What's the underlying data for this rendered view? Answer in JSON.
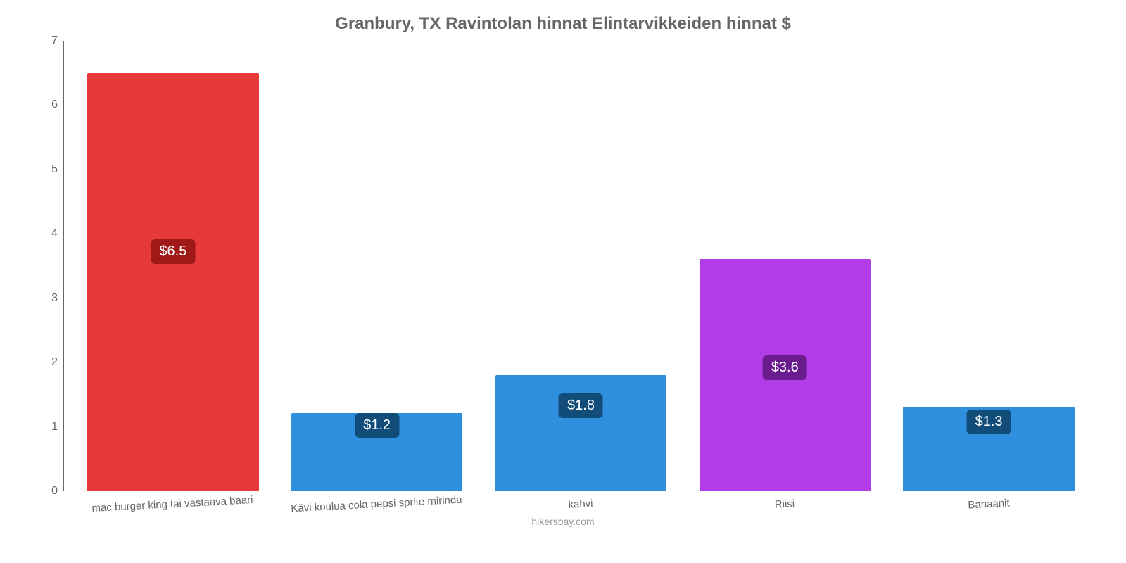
{
  "chart": {
    "type": "bar",
    "title": "Granbury, TX Ravintolan hinnat Elintarvikkeiden hinnat $",
    "title_fontsize": 24,
    "title_color": "#666666",
    "background_color": "#ffffff",
    "axis_color": "#666666",
    "tick_fontsize": 16,
    "tick_color": "#666666",
    "xlabel_fontsize": 15,
    "xlabel_rotate_deg": -3,
    "ylim": [
      0,
      7
    ],
    "yticks": [
      0,
      1,
      2,
      3,
      4,
      5,
      6,
      7
    ],
    "bar_width_pct": 84,
    "credit": "hikersbay.com",
    "credit_color": "#999999",
    "credit_fontsize": 14,
    "value_badge": {
      "fontsize": 20,
      "text_color": "#ffffff",
      "radius": 6,
      "padding": "6px 12px"
    },
    "bars": [
      {
        "category": "mac burger king tai vastaava baari",
        "value": 6.5,
        "display": "$6.5",
        "bar_color": "#e63939",
        "badge_bg": "#a01919",
        "badge_y_value": 3.7
      },
      {
        "category": "Kävi koulua cola pepsi sprite mirinda",
        "value": 1.2,
        "display": "$1.2",
        "bar_color": "#2d8fdd",
        "badge_bg": "#124d7a",
        "badge_y_value": 1.0
      },
      {
        "category": "kahvi",
        "value": 1.8,
        "display": "$1.8",
        "bar_color": "#2d8fdd",
        "badge_bg": "#124d7a",
        "badge_y_value": 1.3
      },
      {
        "category": "Riisi",
        "value": 3.6,
        "display": "$3.6",
        "bar_color": "#b23de8",
        "badge_bg": "#6a1c8f",
        "badge_y_value": 1.9
      },
      {
        "category": "Banaanit",
        "value": 1.3,
        "display": "$1.3",
        "bar_color": "#2d8fdd",
        "badge_bg": "#124d7a",
        "badge_y_value": 1.05
      }
    ]
  }
}
